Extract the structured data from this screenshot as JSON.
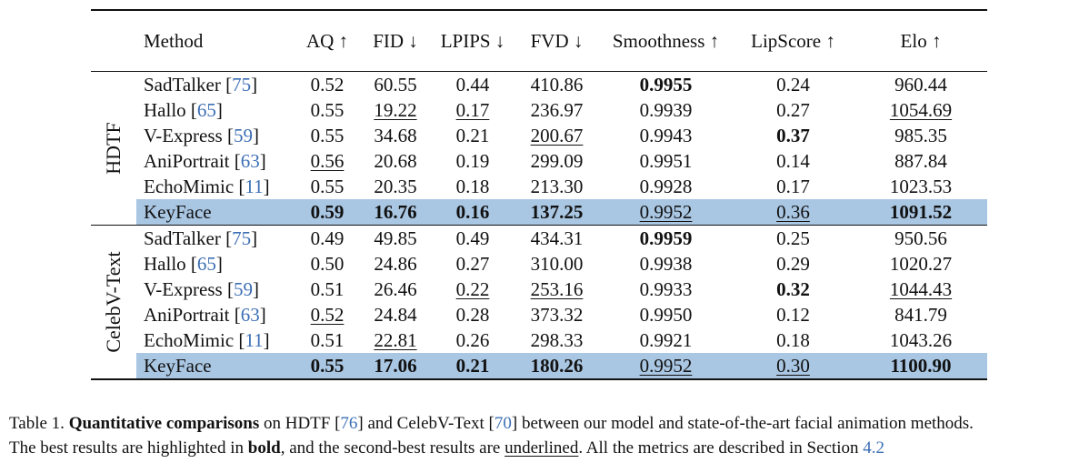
{
  "table": {
    "headers": [
      "Method",
      "AQ ↑",
      "FID ↓",
      "LPIPS ↓",
      "FVD ↓",
      "Smoothness ↑",
      "LipScore ↑",
      "Elo ↑"
    ],
    "groups": [
      {
        "label": "HDTF",
        "rows": [
          {
            "method": "SadTalker",
            "ref": "75",
            "vals": [
              "0.52",
              "60.55",
              "0.44",
              "410.86",
              "0.9955",
              "0.24",
              "960.44"
            ],
            "styles": [
              "",
              "",
              "",
              "",
              "b",
              "",
              ""
            ],
            "highlight": false
          },
          {
            "method": "Hallo",
            "ref": "65",
            "vals": [
              "0.55",
              "19.22",
              "0.17",
              "236.97",
              "0.9939",
              "0.27",
              "1054.69"
            ],
            "styles": [
              "",
              "u",
              "u",
              "",
              "",
              "",
              "u"
            ],
            "highlight": false
          },
          {
            "method": "V-Express",
            "ref": "59",
            "vals": [
              "0.55",
              "34.68",
              "0.21",
              "200.67",
              "0.9943",
              "0.37",
              "985.35"
            ],
            "styles": [
              "",
              "",
              "",
              "u",
              "",
              "b",
              ""
            ],
            "highlight": false
          },
          {
            "method": "AniPortrait",
            "ref": "63",
            "vals": [
              "0.56",
              "20.68",
              "0.19",
              "299.09",
              "0.9951",
              "0.14",
              "887.84"
            ],
            "styles": [
              "u",
              "",
              "",
              "",
              "",
              "",
              ""
            ],
            "highlight": false
          },
          {
            "method": "EchoMimic",
            "ref": "11",
            "vals": [
              "0.55",
              "20.35",
              "0.18",
              "213.30",
              "0.9928",
              "0.17",
              "1023.53"
            ],
            "styles": [
              "",
              "",
              "",
              "",
              "",
              "",
              ""
            ],
            "highlight": false
          },
          {
            "method": "KeyFace",
            "ref": "",
            "vals": [
              "0.59",
              "16.76",
              "0.16",
              "137.25",
              "0.9952",
              "0.36",
              "1091.52"
            ],
            "styles": [
              "b",
              "b",
              "b",
              "b",
              "u",
              "u",
              "b"
            ],
            "highlight": true
          }
        ]
      },
      {
        "label": "CelebV-Text",
        "rows": [
          {
            "method": "SadTalker",
            "ref": "75",
            "vals": [
              "0.49",
              "49.85",
              "0.49",
              "434.31",
              "0.9959",
              "0.25",
              "950.56"
            ],
            "styles": [
              "",
              "",
              "",
              "",
              "b",
              "",
              ""
            ],
            "highlight": false
          },
          {
            "method": "Hallo",
            "ref": "65",
            "vals": [
              "0.50",
              "24.86",
              "0.27",
              "310.00",
              "0.9938",
              "0.29",
              "1020.27"
            ],
            "styles": [
              "",
              "",
              "",
              "",
              "",
              "",
              ""
            ],
            "highlight": false
          },
          {
            "method": "V-Express",
            "ref": "59",
            "vals": [
              "0.51",
              "26.46",
              "0.22",
              "253.16",
              "0.9933",
              "0.32",
              "1044.43"
            ],
            "styles": [
              "",
              "",
              "u",
              "u",
              "",
              "b",
              "u"
            ],
            "highlight": false
          },
          {
            "method": "AniPortrait",
            "ref": "63",
            "vals": [
              "0.52",
              "24.84",
              "0.28",
              "373.32",
              "0.9950",
              "0.12",
              "841.79"
            ],
            "styles": [
              "u",
              "",
              "",
              "",
              "",
              "",
              ""
            ],
            "highlight": false
          },
          {
            "method": "EchoMimic",
            "ref": "11",
            "vals": [
              "0.51",
              "22.81",
              "0.26",
              "298.33",
              "0.9921",
              "0.18",
              "1043.26"
            ],
            "styles": [
              "",
              "u",
              "",
              "",
              "",
              "",
              ""
            ],
            "highlight": false
          },
          {
            "method": "KeyFace",
            "ref": "",
            "vals": [
              "0.55",
              "17.06",
              "0.21",
              "180.26",
              "0.9952",
              "0.30",
              "1100.90"
            ],
            "styles": [
              "b",
              "b",
              "b",
              "b",
              "u",
              "u",
              "b"
            ],
            "highlight": true
          }
        ]
      }
    ]
  },
  "caption": {
    "label": "Table 1.",
    "lead": "Quantitative comparisons",
    "text1": "on HDTF [",
    "ref1": "76",
    "text2": "] and CelebV-Text [",
    "ref2": "70",
    "text3": "] between our model and state-of-the-art facial animation methods.",
    "line2a": "The best results are highlighted in ",
    "bold_word": "bold",
    "line2b": ", and the second-best results are ",
    "underline_word": "underlined",
    "line2c": ". All the metrics are described in Section ",
    "section_ref": "4.2"
  },
  "colors": {
    "highlight": "#a9c6e2",
    "ref_link": "#3d6fb5",
    "text": "#111111"
  }
}
